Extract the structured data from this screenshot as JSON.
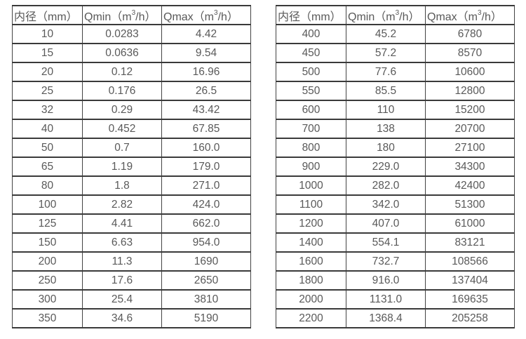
{
  "colors": {
    "background": "#ffffff",
    "border": "#3f3f3f",
    "text": "#595959"
  },
  "headers": {
    "diameter": "内径（mm）",
    "qmin_pre": "Qmin（m",
    "qmin_sup": "3",
    "qmin_post": "/h）",
    "qmax_pre": "Qmax（m",
    "qmax_sup": "3",
    "qmax_post": "/h）"
  },
  "tables": [
    {
      "rows": [
        [
          "10",
          "0.0283",
          "4.42"
        ],
        [
          "15",
          "0.0636",
          "9.54"
        ],
        [
          "20",
          "0.12",
          "16.96"
        ],
        [
          "25",
          "0.176",
          "26.5"
        ],
        [
          "32",
          "0.29",
          "43.42"
        ],
        [
          "40",
          "0.452",
          "67.85"
        ],
        [
          "50",
          "0.7",
          "160.0"
        ],
        [
          "65",
          "1.19",
          "179.0"
        ],
        [
          "80",
          "1.8",
          "271.0"
        ],
        [
          "100",
          "2.82",
          "424.0"
        ],
        [
          "125",
          "4.41",
          "662.0"
        ],
        [
          "150",
          "6.63",
          "954.0"
        ],
        [
          "200",
          "11.3",
          "1690"
        ],
        [
          "250",
          "17.6",
          "2650"
        ],
        [
          "300",
          "25.4",
          "3810"
        ],
        [
          "350",
          "34.6",
          "5190"
        ]
      ]
    },
    {
      "rows": [
        [
          "400",
          "45.2",
          "6780"
        ],
        [
          "450",
          "57.2",
          "8570"
        ],
        [
          "500",
          "77.6",
          "10600"
        ],
        [
          "550",
          "85.5",
          "12800"
        ],
        [
          "600",
          "110",
          "15200"
        ],
        [
          "700",
          "138",
          "20700"
        ],
        [
          "800",
          "180",
          "27100"
        ],
        [
          "900",
          "229.0",
          "34300"
        ],
        [
          "1000",
          "282.0",
          "42400"
        ],
        [
          "1100",
          "342.0",
          "51300"
        ],
        [
          "1200",
          "407.0",
          "61000"
        ],
        [
          "1400",
          "554.1",
          "83121"
        ],
        [
          "1600",
          "732.7",
          "108566"
        ],
        [
          "1800",
          "916.0",
          "137404"
        ],
        [
          "2000",
          "1131.0",
          "169635"
        ],
        [
          "2200",
          "1368.4",
          "205258"
        ]
      ]
    }
  ]
}
